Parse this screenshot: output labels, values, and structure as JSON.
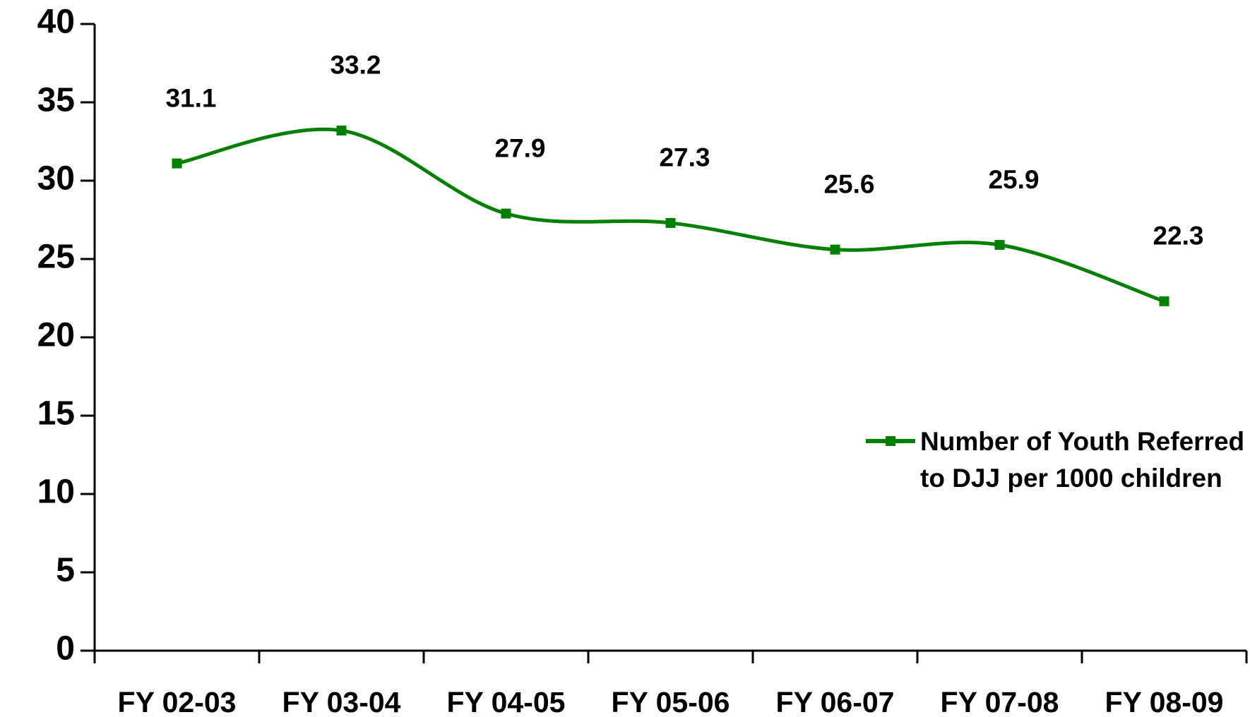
{
  "chart_data": {
    "type": "line",
    "categories": [
      "FY 02-03",
      "FY 03-04",
      "FY 04-05",
      "FY 05-06",
      "FY 06-07",
      "FY 07-08",
      "FY 08-09"
    ],
    "series": [
      {
        "name": "Number of Youth Referred to DJJ per 1000 children",
        "color": "#008000",
        "values": [
          31.1,
          33.2,
          27.9,
          27.3,
          25.6,
          25.9,
          22.3
        ]
      }
    ],
    "ylim": [
      0,
      40
    ],
    "yticks": [
      0,
      5,
      10,
      15,
      20,
      25,
      30,
      35,
      40
    ],
    "grid": false,
    "smooth": true,
    "legend": "right"
  }
}
